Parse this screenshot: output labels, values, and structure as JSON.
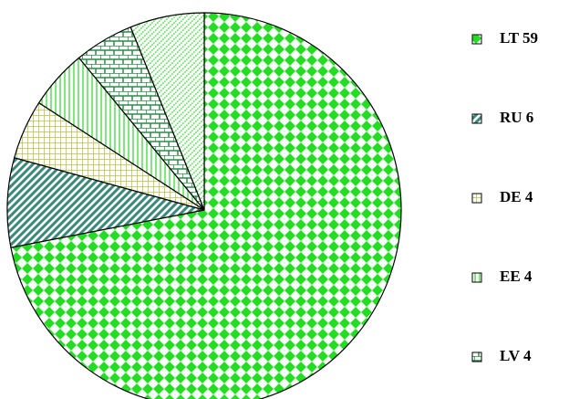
{
  "chart_data": {
    "type": "pie",
    "categories": [
      "LT 59",
      "RU 6",
      "DE 4",
      "EE 4",
      "LV 4",
      null
    ],
    "values": [
      59,
      6,
      4,
      4,
      4,
      5
    ],
    "colors": [
      "#22dd22",
      "#3a8a7a",
      "#b8c040",
      "#55dd55",
      "#2f8a4a",
      "#66e066"
    ],
    "legend": "right"
  }
}
